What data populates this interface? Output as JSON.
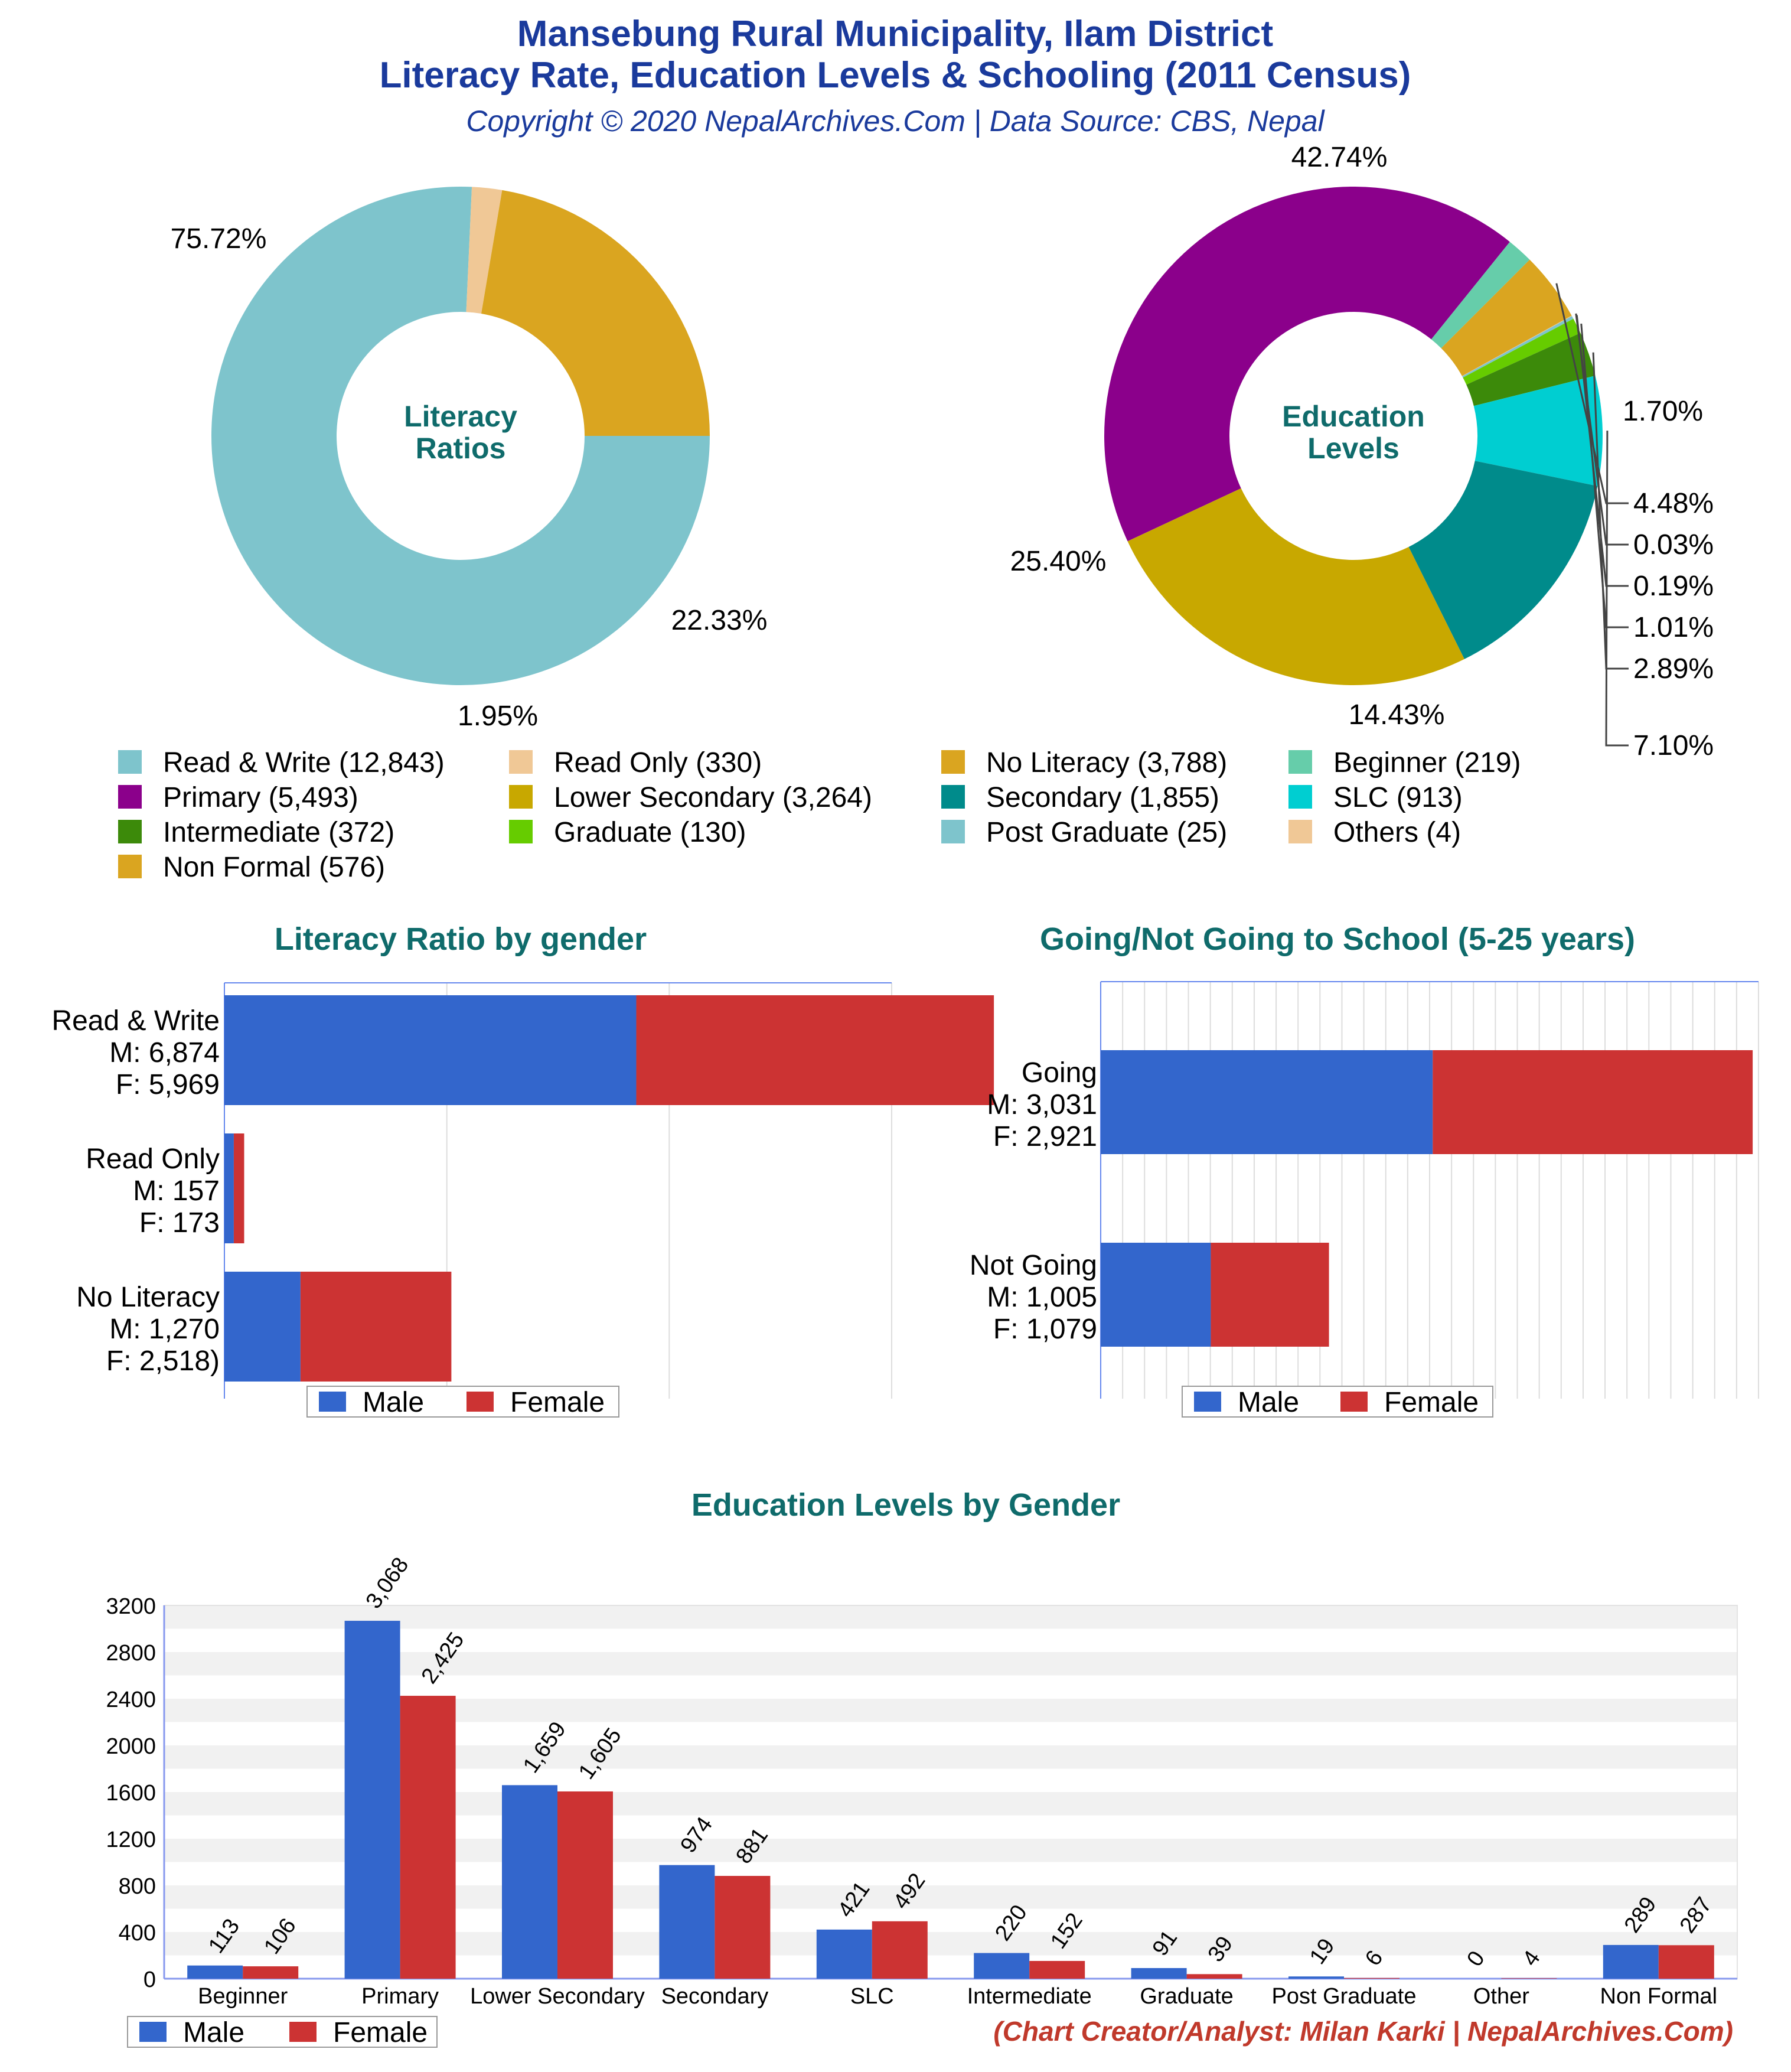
{
  "header": {
    "title_line1": "Mansebung Rural Municipality, Ilam District",
    "title_line2": "Literacy Rate, Education Levels & Schooling (2011 Census)",
    "subtitle": "Copyright © 2020 NepalArchives.Com | Data Source: CBS, Nepal"
  },
  "footer": {
    "credit": "(Chart Creator/Analyst: Milan Karki | NepalArchives.Com)"
  },
  "colors": {
    "title": "#1a3a9c",
    "teal_title": "#0f6b6b",
    "male": "#3366cc",
    "female": "#cc3333",
    "credit": "#c0392b"
  },
  "legend": [
    {
      "label": "Read & Write (12,843)",
      "color": "#7ec4cc"
    },
    {
      "label": "Read Only (330)",
      "color": "#f0c896"
    },
    {
      "label": "No Literacy (3,788)",
      "color": "#daa520"
    },
    {
      "label": "Beginner (219)",
      "color": "#66cdaa"
    },
    {
      "label": "Primary (5,493)",
      "color": "#8b008b"
    },
    {
      "label": "Lower Secondary (3,264)",
      "color": "#c8a800"
    },
    {
      "label": "Secondary (1,855)",
      "color": "#008b8b"
    },
    {
      "label": "SLC (913)",
      "color": "#00ced1"
    },
    {
      "label": "Intermediate (372)",
      "color": "#3c8a0a"
    },
    {
      "label": "Graduate (130)",
      "color": "#66cc00"
    },
    {
      "label": "Post Graduate (25)",
      "color": "#7ec4cc"
    },
    {
      "label": "Others (4)",
      "color": "#f0c896"
    },
    {
      "label": "Non Formal (576)",
      "color": "#daa520"
    }
  ],
  "chart_data": [
    {
      "type": "pie",
      "title": "Literacy Ratios",
      "donut": true,
      "slices": [
        {
          "name": "Read & Write",
          "value": 12843,
          "percent_label": "75.72%",
          "color": "#7ec4cc"
        },
        {
          "name": "Read Only",
          "value": 330,
          "percent_label": "1.95%",
          "color": "#f0c896"
        },
        {
          "name": "No Literacy",
          "value": 3788,
          "percent_label": "22.33%",
          "color": "#daa520"
        }
      ]
    },
    {
      "type": "pie",
      "title": "Education Levels",
      "donut": true,
      "slices": [
        {
          "name": "Primary",
          "value": 5493,
          "percent_label": "42.74%",
          "color": "#8b008b"
        },
        {
          "name": "Beginner",
          "value": 219,
          "percent_label": "1.70%",
          "color": "#66cdaa"
        },
        {
          "name": "Non Formal",
          "value": 576,
          "percent_label": "4.48%",
          "color": "#daa520"
        },
        {
          "name": "Others",
          "value": 4,
          "percent_label": "0.03%",
          "color": "#f0c896"
        },
        {
          "name": "Post Graduate",
          "value": 25,
          "percent_label": "0.19%",
          "color": "#7ec4cc"
        },
        {
          "name": "Graduate",
          "value": 130,
          "percent_label": "1.01%",
          "color": "#66cc00"
        },
        {
          "name": "Intermediate",
          "value": 372,
          "percent_label": "2.89%",
          "color": "#3c8a0a"
        },
        {
          "name": "SLC",
          "value": 913,
          "percent_label": "7.10%",
          "color": "#00ced1"
        },
        {
          "name": "Secondary",
          "value": 1855,
          "percent_label": "14.43%",
          "color": "#008b8b"
        },
        {
          "name": "Lower Secondary",
          "value": 3264,
          "percent_label": "25.40%",
          "color": "#c8a800"
        }
      ]
    },
    {
      "type": "bar",
      "orientation": "horizontal",
      "stacked": true,
      "title": "Literacy Ratio by gender",
      "categories": [
        {
          "name": "Read & Write",
          "m_label": "M: 6,874",
          "f_label": "F: 5,969"
        },
        {
          "name": "Read Only",
          "m_label": "M: 157",
          "f_label": "F: 173"
        },
        {
          "name": "No Literacy",
          "m_label": "M: 1,270",
          "f_label": "F: 2,518)"
        }
      ],
      "series": [
        {
          "name": "Male",
          "values": [
            6874,
            157,
            1270
          ],
          "color": "#3366cc"
        },
        {
          "name": "Female",
          "values": [
            5969,
            173,
            2518
          ],
          "color": "#cc3333"
        }
      ],
      "xlim": [
        0,
        15000
      ],
      "legend": "bottom"
    },
    {
      "type": "bar",
      "orientation": "horizontal",
      "stacked": true,
      "title": "Going/Not Going to School (5-25 years)",
      "categories": [
        {
          "name": "Going",
          "m_label": "M: 3,031",
          "f_label": "F: 2,921"
        },
        {
          "name": "Not Going",
          "m_label": "M: 1,005",
          "f_label": "F: 1,079"
        }
      ],
      "series": [
        {
          "name": "Male",
          "values": [
            3031,
            1005
          ],
          "color": "#3366cc"
        },
        {
          "name": "Female",
          "values": [
            2921,
            1079
          ],
          "color": "#cc3333"
        }
      ],
      "xlim": [
        0,
        6000
      ],
      "legend": "bottom"
    },
    {
      "type": "bar",
      "title": "Education Levels by Gender",
      "categories": [
        "Beginner",
        "Primary",
        "Lower Secondary",
        "Secondary",
        "SLC",
        "Intermediate",
        "Graduate",
        "Post Graduate",
        "Other",
        "Non Formal"
      ],
      "series": [
        {
          "name": "Male",
          "values": [
            113,
            3068,
            1659,
            974,
            421,
            220,
            91,
            19,
            0,
            289
          ],
          "labels": [
            "113",
            "3,068",
            "1,659",
            "974",
            "421",
            "220",
            "91",
            "19",
            "0",
            "289"
          ],
          "color": "#3366cc"
        },
        {
          "name": "Female",
          "values": [
            106,
            2425,
            1605,
            881,
            492,
            152,
            39,
            6,
            4,
            287
          ],
          "labels": [
            "106",
            "2,425",
            "1,605",
            "881",
            "492",
            "152",
            "39",
            "6",
            "4",
            "287"
          ],
          "color": "#cc3333"
        }
      ],
      "ylim": [
        0,
        3200
      ],
      "yticks": [
        "0",
        "400",
        "800",
        "1200",
        "1600",
        "2000",
        "2400",
        "2800",
        "3200"
      ],
      "grid": true,
      "legend": "bottom-left"
    }
  ]
}
